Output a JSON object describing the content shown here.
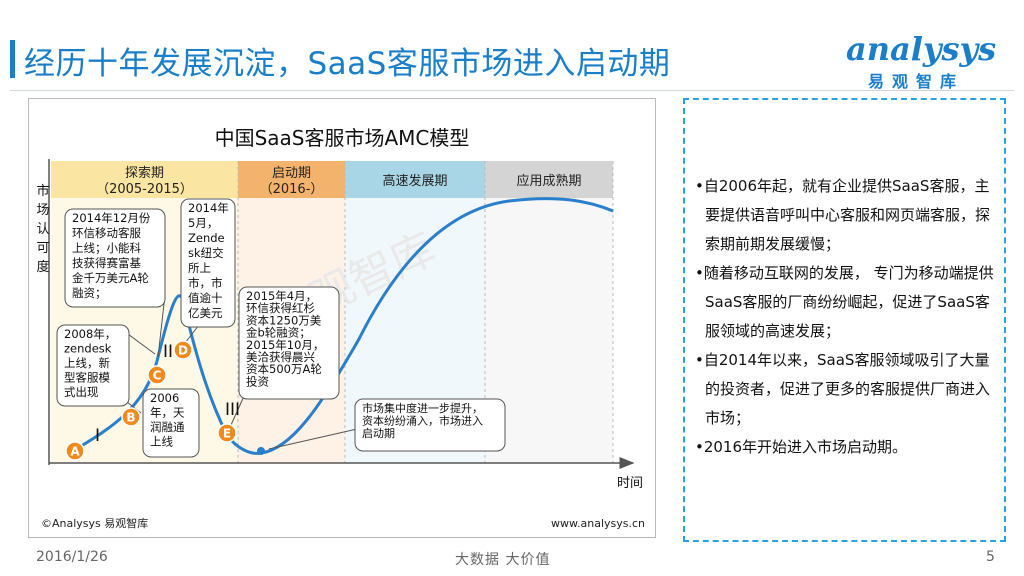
{
  "header": {
    "title": "经历十年发展沉淀，SaaS客服市场进入启动期",
    "logo_en": "analysys",
    "logo_cn": "易观智库"
  },
  "diagram": {
    "title": "中国SaaS客服市场AMC模型",
    "y_axis_label": [
      "市",
      "场",
      "认",
      "可",
      "度"
    ],
    "x_axis_label": "时间",
    "watermark": "易观智库",
    "phases": [
      {
        "lines": [
          "探索期",
          "（2005-2015）"
        ],
        "color": "#fbe5a3"
      },
      {
        "lines": [
          "启动期",
          "（2016-）"
        ],
        "color": "#f4b36d"
      },
      {
        "lines": [
          "高速发展期"
        ],
        "color": "#a9d6e6"
      },
      {
        "lines": [
          "应用成熟期"
        ],
        "color": "#d4d4d4"
      }
    ],
    "roman_numerals": [
      "I",
      "II",
      "III"
    ],
    "markers": [
      "A",
      "B",
      "C",
      "D",
      "E"
    ],
    "callouts": [
      {
        "lines": [
          "2008年，",
          "zendesk",
          "上线，新",
          "型客服模",
          "式出现"
        ]
      },
      {
        "lines": [
          "2014年12月份",
          "环信移动客服",
          "上线；小能科",
          "技获得赛富基",
          "金千万美元A轮",
          "融资；"
        ]
      },
      {
        "lines": [
          "2014年",
          "5月，",
          "Zende",
          "sk纽交",
          "所上",
          "市，市",
          "值逾十",
          "亿美元"
        ]
      },
      {
        "lines": [
          "2006",
          "年，天",
          "润融通",
          "上线"
        ]
      },
      {
        "lines": [
          "2015年4月，",
          "环信获得红杉",
          "资本1250万美",
          "金b轮融资；",
          "2015年10月，",
          "美洽获得晨兴",
          "资本500万A轮",
          "投资"
        ]
      },
      {
        "lines": [
          "市场集中度进一步提升，",
          "资本纷纷涌入，市场进入",
          "启动期"
        ]
      }
    ],
    "copyright": "©Analysys 易观智库",
    "website": "www.analysys.cn"
  },
  "bullets": [
    "•自2006年起，就有企业提供SaaS客服，主要提供语音呼叫中心客服和网页端客服，探索期前期发展缓慢；",
    "•随着移动互联网的发展， 专门为移动端提供SaaS客服的厂商纷纷崛起，促进了SaaS客服领域的高速发展；",
    "•自2014年以来，SaaS客服领域吸引了大量的投资者，促进了更多的客服提供厂商进入市场；",
    "•2016年开始进入市场启动期。"
  ],
  "footer": {
    "date": "2016/1/26",
    "slogan": "大数据    大价值",
    "page": "5"
  },
  "colors": {
    "accent": "#1a7fc8",
    "curve": "#2a7fcc",
    "marker": "#f08a1d",
    "dashed_border": "#29a3de"
  }
}
